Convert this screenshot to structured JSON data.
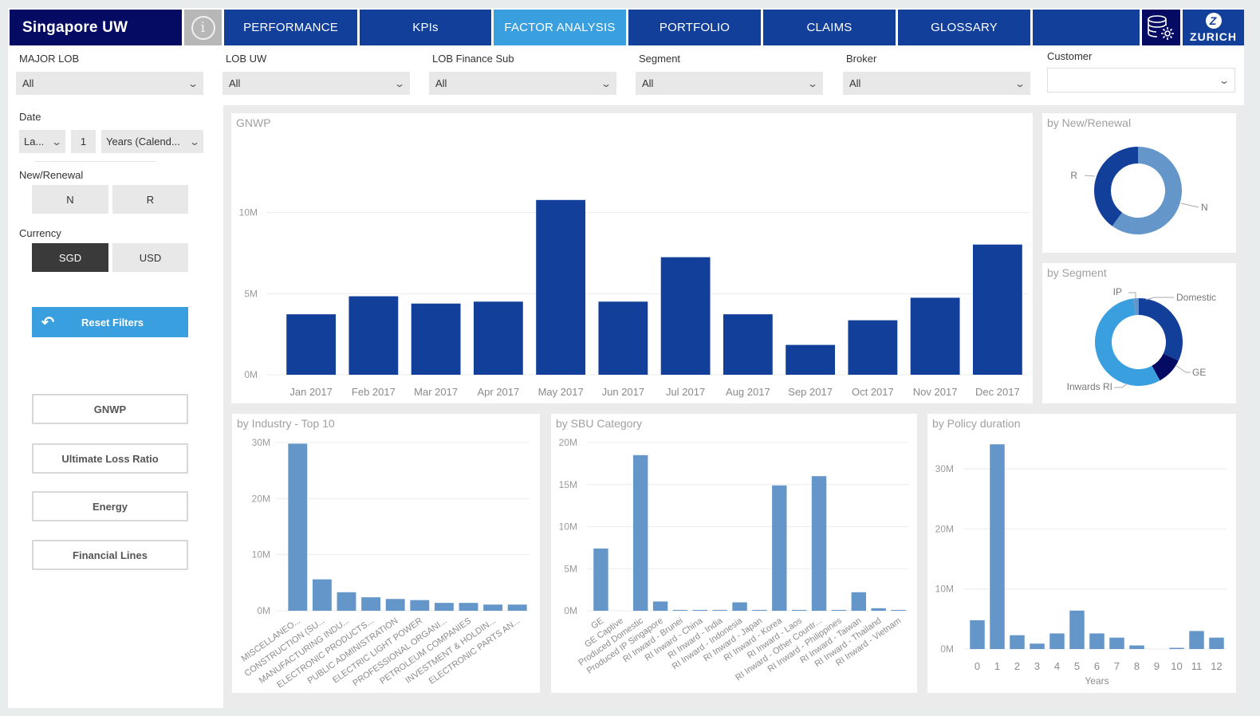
{
  "header": {
    "title": "Singapore UW",
    "tabs": [
      {
        "label": "PERFORMANCE",
        "active": false
      },
      {
        "label": "KPIs",
        "active": false
      },
      {
        "label": "FACTOR ANALYSIS",
        "active": true
      },
      {
        "label": "PORTFOLIO",
        "active": false
      },
      {
        "label": "CLAIMS",
        "active": false
      },
      {
        "label": "GLOSSARY",
        "active": false
      }
    ],
    "info_icon": "info-icon",
    "settings_icon": "database-gear-icon",
    "brand": "ZURICH",
    "brand_logo": "Z"
  },
  "filters": {
    "major_lob": {
      "label": "MAJOR LOB",
      "value": "All"
    },
    "lob_uw": {
      "label": "LOB UW",
      "value": "All"
    },
    "lob_finance_sub": {
      "label": "LOB Finance Sub",
      "value": "All"
    },
    "segment": {
      "label": "Segment",
      "value": "All"
    },
    "broker": {
      "label": "Broker",
      "value": "All"
    },
    "customer": {
      "label": "Customer",
      "value": ""
    }
  },
  "sidebar": {
    "date": {
      "label": "Date",
      "mode": "La...",
      "count": "1",
      "unit": "Years (Calend..."
    },
    "new_renewal": {
      "label": "New/Renewal",
      "options": [
        "N",
        "R"
      ]
    },
    "currency": {
      "label": "Currency",
      "options": [
        "SGD",
        "USD"
      ],
      "selected": "SGD"
    },
    "reset_label": "Reset Filters",
    "nav_buttons": [
      "GNWP",
      "Ultimate Loss Ratio",
      "Energy",
      "Financial Lines"
    ]
  },
  "colors": {
    "dark_navy": "#050b63",
    "tab_blue": "#123f99",
    "active_blue": "#3a9fde",
    "bar_main": "#123f99",
    "bar_light": "#6596c9"
  },
  "chart_data": [
    {
      "id": "gnwp",
      "type": "bar",
      "title": "GNWP",
      "categories": [
        "Jan 2017",
        "Feb 2017",
        "Mar 2017",
        "Apr 2017",
        "May 2017",
        "Jun 2017",
        "Jul 2017",
        "Aug 2017",
        "Sep 2017",
        "Oct 2017",
        "Nov 2017",
        "Dec 2017"
      ],
      "values": [
        3.73,
        4.84,
        4.39,
        4.51,
        10.78,
        4.51,
        7.25,
        3.73,
        1.84,
        3.36,
        4.75,
        8.03
      ],
      "unit": "M",
      "yticks": [
        "0M",
        "5M",
        "10M"
      ],
      "ylim": [
        0,
        12
      ],
      "grid": true
    },
    {
      "id": "new_renewal",
      "type": "pie",
      "title": "by New/Renewal",
      "donut": true,
      "slices": [
        {
          "label": "N",
          "value": 60,
          "color": "#6596c9"
        },
        {
          "label": "R",
          "value": 40,
          "color": "#123f99"
        }
      ]
    },
    {
      "id": "segment",
      "type": "pie",
      "title": "by Segment",
      "donut": true,
      "slices": [
        {
          "label": "Domestic",
          "value": 32,
          "color": "#123f99"
        },
        {
          "label": "GE",
          "value": 10,
          "color": "#050b63"
        },
        {
          "label": "Inwards RI",
          "value": 56,
          "color": "#3a9fde"
        },
        {
          "label": "IP",
          "value": 2,
          "color": "#6596c9"
        }
      ]
    },
    {
      "id": "industry",
      "type": "bar",
      "title": "by Industry - Top 10",
      "categories": [
        "MISCELLANEO...",
        "CONSTRUCTION (SU...",
        "MANUFACTURING INDU...",
        "ELECTRONIC PRODUCTS...",
        "PUBLIC ADMINISTRATION",
        "ELECTRIC LIGHT POWER",
        "PROFESSIONAL ORGANI...",
        "PETROLEUM COMPANIES",
        "INVESTMENT & HOLDIN...",
        "ELECTRONIC PARTS AN..."
      ],
      "values": [
        29.8,
        5.6,
        3.3,
        2.4,
        2.1,
        1.9,
        1.4,
        1.4,
        1.1,
        1.1
      ],
      "unit": "M",
      "yticks": [
        "0M",
        "10M",
        "20M",
        "30M"
      ],
      "ylim": [
        0,
        30
      ],
      "grid": true
    },
    {
      "id": "sbu",
      "type": "bar",
      "title": "by SBU Category",
      "categories": [
        "GE",
        "GE Captive",
        "Produced Domestic",
        "Produced IP Singapore",
        "RI Inward - Brunei",
        "RI Inward - China",
        "RI Inward - India",
        "RI Inward - Indonesia",
        "RI Inward - Japan",
        "RI Inward - Korea",
        "RI Inward - Laos",
        "RI Inward - Other Countr...",
        "RI Inward - Philippines",
        "RI Inward - Taiwan",
        "RI Inward - Thailand",
        "RI Inward - Vietnam"
      ],
      "values": [
        7.4,
        0,
        18.5,
        1.1,
        0.1,
        0.1,
        0.1,
        1.0,
        0.1,
        14.9,
        0.1,
        16.0,
        0.1,
        2.2,
        0.3,
        0.1
      ],
      "unit": "M",
      "yticks": [
        "0M",
        "5M",
        "10M",
        "15M",
        "20M"
      ],
      "ylim": [
        0,
        20
      ],
      "grid": true
    },
    {
      "id": "policy_duration",
      "type": "bar",
      "title": "by Policy duration",
      "categories": [
        "0",
        "1",
        "2",
        "3",
        "4",
        "5",
        "6",
        "7",
        "8",
        "9",
        "10",
        "11",
        "12"
      ],
      "values": [
        4.8,
        34.1,
        2.3,
        0.9,
        2.6,
        6.4,
        2.6,
        1.9,
        0.6,
        0,
        0.2,
        3.0,
        1.9
      ],
      "unit": "M",
      "xlabel": "Years",
      "yticks": [
        "0M",
        "10M",
        "20M",
        "30M"
      ],
      "ylim": [
        0,
        34.4
      ],
      "grid": true
    }
  ]
}
